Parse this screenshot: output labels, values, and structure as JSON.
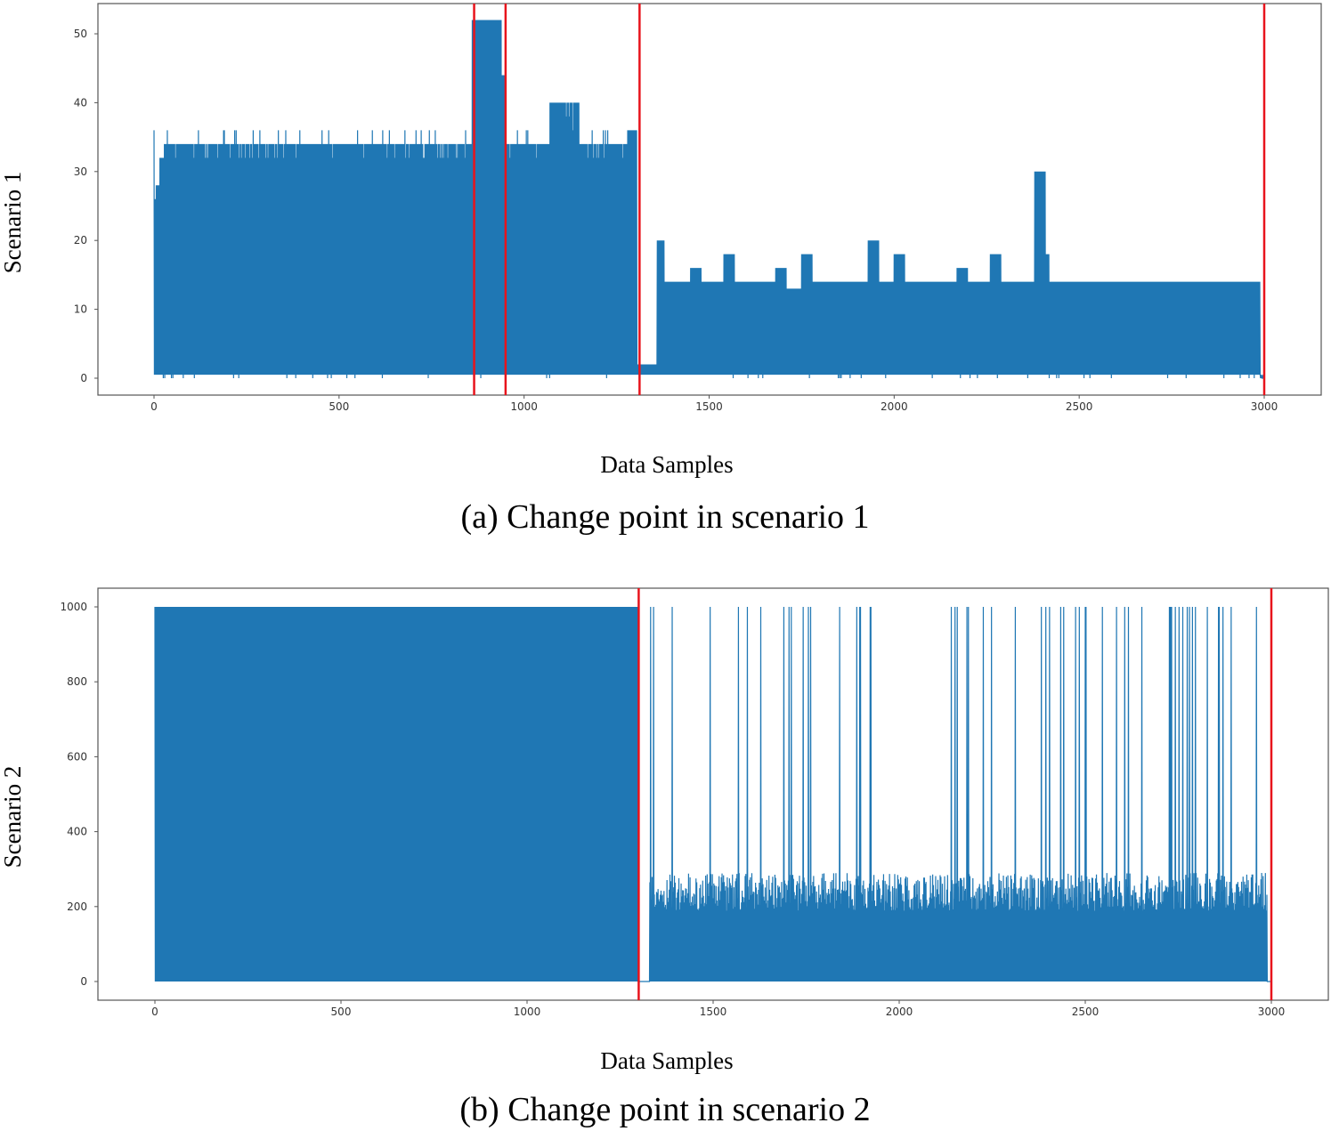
{
  "chart_data": [
    {
      "type": "line",
      "caption": "(a) Change point in scenario 1",
      "xlabel": "Data Samples",
      "ylabel": "Scenario 1",
      "xlim": [
        -150,
        3150
      ],
      "ylim": [
        -2.5,
        54.5
      ],
      "xticks": [
        0,
        500,
        1000,
        1500,
        2000,
        2500,
        3000
      ],
      "yticks": [
        0,
        10,
        20,
        30,
        40,
        50
      ],
      "series_color": "#1f77b4",
      "change_point_color": "#e8141c",
      "change_points": [
        865,
        950,
        1312,
        3000
      ],
      "signal_envelope": {
        "description_of_values": "segment [x_start, x_end, y_max]; signal oscillates between y_min and y_max",
        "y_min": 0.5,
        "segments": [
          [
            0,
            5,
            26
          ],
          [
            5,
            15,
            28
          ],
          [
            15,
            25,
            32
          ],
          [
            25,
            860,
            34
          ],
          [
            860,
            940,
            52
          ],
          [
            940,
            950,
            44
          ],
          [
            950,
            1070,
            34
          ],
          [
            1070,
            1150,
            40
          ],
          [
            1150,
            1280,
            34
          ],
          [
            1280,
            1305,
            36
          ],
          [
            1305,
            1330,
            2
          ],
          [
            1330,
            1360,
            2
          ],
          [
            1360,
            1380,
            20
          ],
          [
            1380,
            1450,
            14
          ],
          [
            1450,
            1480,
            16
          ],
          [
            1480,
            1540,
            14
          ],
          [
            1540,
            1570,
            18
          ],
          [
            1570,
            1680,
            14
          ],
          [
            1680,
            1710,
            16
          ],
          [
            1710,
            1750,
            13
          ],
          [
            1750,
            1780,
            18
          ],
          [
            1780,
            1930,
            14
          ],
          [
            1930,
            1960,
            20
          ],
          [
            1960,
            2000,
            14
          ],
          [
            2000,
            2030,
            18
          ],
          [
            2030,
            2170,
            14
          ],
          [
            2170,
            2200,
            16
          ],
          [
            2200,
            2260,
            14
          ],
          [
            2260,
            2290,
            18
          ],
          [
            2290,
            2380,
            14
          ],
          [
            2380,
            2410,
            30
          ],
          [
            2410,
            2420,
            18
          ],
          [
            2420,
            2990,
            14
          ],
          [
            2990,
            3000,
            0
          ]
        ],
        "peak_level_before_first_change": 36
      }
    },
    {
      "type": "line",
      "caption": "(b) Change point in scenario 2",
      "xlabel": "Data Samples",
      "ylabel": "Scenario 2",
      "xlim": [
        -150,
        3150
      ],
      "ylim": [
        -50,
        1050
      ],
      "xticks": [
        0,
        500,
        1000,
        1500,
        2000,
        2500,
        3000
      ],
      "yticks": [
        0,
        200,
        400,
        600,
        800,
        1000
      ],
      "series_color": "#1f77b4",
      "change_point_color": "#e8141c",
      "change_points": [
        1300,
        3000
      ],
      "signal_envelope": {
        "description_of_values": "segment [x_start, x_end, base_max, spike_max]; signal oscillates between 0 and base_max with spikes to spike_max",
        "y_min": 0,
        "segments": [
          [
            0,
            1300,
            1000,
            1000
          ],
          [
            1300,
            1330,
            0,
            0
          ],
          [
            1330,
            2990,
            290,
            1000
          ],
          [
            2990,
            3000,
            0,
            0
          ]
        ]
      }
    }
  ]
}
